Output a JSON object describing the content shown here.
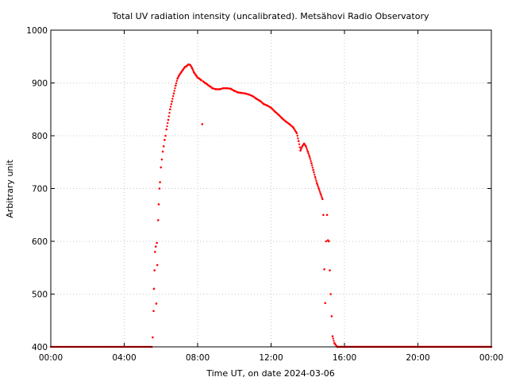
{
  "chart_data": {
    "type": "scatter",
    "title": "Total UV radiation intensity (uncalibrated). Metsähovi Radio Observatory",
    "xlabel": "Time UT, on date 2024-03-06",
    "ylabel": "Arbitrary unit",
    "x_unit": "hours UT",
    "xlim": [
      0,
      24
    ],
    "ylim": [
      400,
      1000
    ],
    "x_ticks": [
      0,
      4,
      8,
      12,
      16,
      20,
      24
    ],
    "x_tick_labels": [
      "00:00",
      "04:00",
      "08:00",
      "12:00",
      "16:00",
      "20:00",
      "00:00"
    ],
    "y_ticks": [
      400,
      500,
      600,
      700,
      800,
      900,
      1000
    ],
    "y_tick_labels": [
      "400",
      "500",
      "600",
      "700",
      "800",
      "900",
      "1000"
    ],
    "grid": true,
    "series": [
      {
        "color": "#ff0000",
        "points": [
          [
            5.5,
            400
          ],
          [
            5.55,
            418
          ],
          [
            5.6,
            468
          ],
          [
            5.62,
            510
          ],
          [
            5.65,
            545
          ],
          [
            5.68,
            580
          ],
          [
            5.72,
            590
          ],
          [
            5.75,
            482
          ],
          [
            5.78,
            597
          ],
          [
            5.8,
            555
          ],
          [
            5.85,
            640
          ],
          [
            5.88,
            670
          ],
          [
            5.92,
            700
          ],
          [
            5.95,
            712
          ],
          [
            6.0,
            740
          ],
          [
            6.05,
            755
          ],
          [
            6.1,
            770
          ],
          [
            6.15,
            780
          ],
          [
            6.2,
            792
          ],
          [
            6.25,
            800
          ],
          [
            6.3,
            812
          ],
          [
            6.4,
            830
          ],
          [
            6.5,
            850
          ],
          [
            6.6,
            865
          ],
          [
            6.7,
            880
          ],
          [
            6.8,
            895
          ],
          [
            6.9,
            908
          ],
          [
            7.0,
            915
          ],
          [
            7.1,
            920
          ],
          [
            7.2,
            925
          ],
          [
            7.3,
            930
          ],
          [
            7.4,
            932
          ],
          [
            7.5,
            935
          ],
          [
            7.6,
            934
          ],
          [
            7.7,
            928
          ],
          [
            7.8,
            920
          ],
          [
            7.9,
            915
          ],
          [
            8.0,
            910
          ],
          [
            8.1,
            908
          ],
          [
            8.2,
            905
          ],
          [
            8.25,
            822
          ],
          [
            8.3,
            903
          ],
          [
            8.4,
            900
          ],
          [
            8.5,
            898
          ],
          [
            8.6,
            895
          ],
          [
            8.7,
            893
          ],
          [
            8.8,
            890
          ],
          [
            9.0,
            888
          ],
          [
            9.2,
            888
          ],
          [
            9.4,
            890
          ],
          [
            9.6,
            890
          ],
          [
            9.8,
            889
          ],
          [
            10.0,
            885
          ],
          [
            10.2,
            882
          ],
          [
            10.4,
            881
          ],
          [
            10.6,
            880
          ],
          [
            10.8,
            878
          ],
          [
            11.0,
            875
          ],
          [
            11.2,
            870
          ],
          [
            11.4,
            866
          ],
          [
            11.6,
            860
          ],
          [
            11.8,
            857
          ],
          [
            12.0,
            853
          ],
          [
            12.2,
            846
          ],
          [
            12.4,
            840
          ],
          [
            12.6,
            833
          ],
          [
            12.8,
            827
          ],
          [
            13.0,
            822
          ],
          [
            13.2,
            816
          ],
          [
            13.4,
            805
          ],
          [
            13.5,
            790
          ],
          [
            13.6,
            772
          ],
          [
            13.7,
            780
          ],
          [
            13.8,
            785
          ],
          [
            13.9,
            780
          ],
          [
            14.0,
            770
          ],
          [
            14.1,
            760
          ],
          [
            14.2,
            748
          ],
          [
            14.3,
            735
          ],
          [
            14.4,
            722
          ],
          [
            14.5,
            710
          ],
          [
            14.6,
            700
          ],
          [
            14.7,
            690
          ],
          [
            14.8,
            680
          ],
          [
            14.85,
            650
          ],
          [
            14.9,
            547
          ],
          [
            14.95,
            483
          ],
          [
            15.0,
            600
          ],
          [
            15.05,
            650
          ],
          [
            15.1,
            602
          ],
          [
            15.15,
            600
          ],
          [
            15.2,
            545
          ],
          [
            15.25,
            500
          ],
          [
            15.3,
            458
          ],
          [
            15.35,
            420
          ],
          [
            15.45,
            407
          ],
          [
            15.6,
            400
          ],
          [
            16.0,
            400
          ],
          [
            20.0,
            400
          ],
          [
            24.0,
            400
          ]
        ]
      }
    ]
  }
}
